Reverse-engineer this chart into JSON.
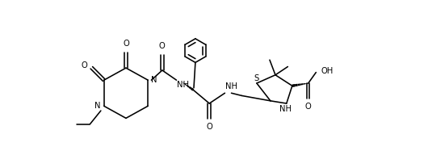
{
  "background": "#ffffff",
  "line_color": "#000000",
  "line_width": 1.15,
  "font_size": 7.2,
  "fig_width": 5.3,
  "fig_height": 2.08,
  "dpi": 100,
  "xlim": [
    -0.5,
    10.8
  ],
  "ylim": [
    -1.2,
    5.2
  ]
}
